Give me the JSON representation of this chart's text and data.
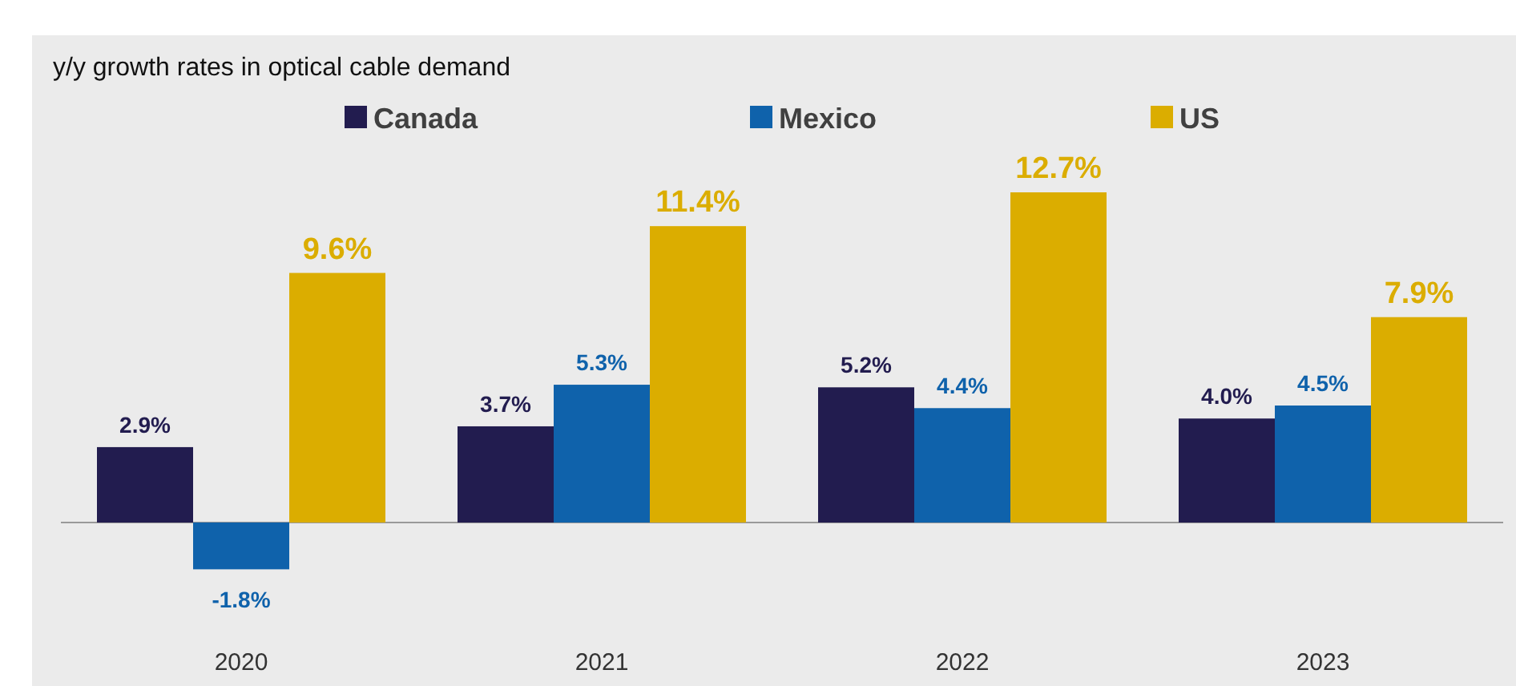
{
  "chart_data": {
    "type": "bar",
    "title": "y/y growth rates in optical cable demand",
    "categories": [
      "2020",
      "2021",
      "2022",
      "2023"
    ],
    "legend": "top",
    "series": [
      {
        "name": "Canada",
        "color": "#221c4f",
        "values": [
          2.9,
          3.7,
          5.2,
          4.0
        ],
        "value_labels": [
          "2.9%",
          "3.7%",
          "5.2%",
          "4.0%"
        ]
      },
      {
        "name": "Mexico",
        "color": "#0f62ab",
        "values": [
          -1.8,
          5.3,
          4.4,
          4.5
        ],
        "value_labels": [
          "-1.8%",
          "5.3%",
          "4.4%",
          "4.5%"
        ]
      },
      {
        "name": "US",
        "color": "#dbad00",
        "values": [
          9.6,
          11.4,
          12.7,
          7.9
        ],
        "value_labels": [
          "9.6%",
          "11.4%",
          "12.7%",
          "7.9%"
        ]
      }
    ]
  }
}
